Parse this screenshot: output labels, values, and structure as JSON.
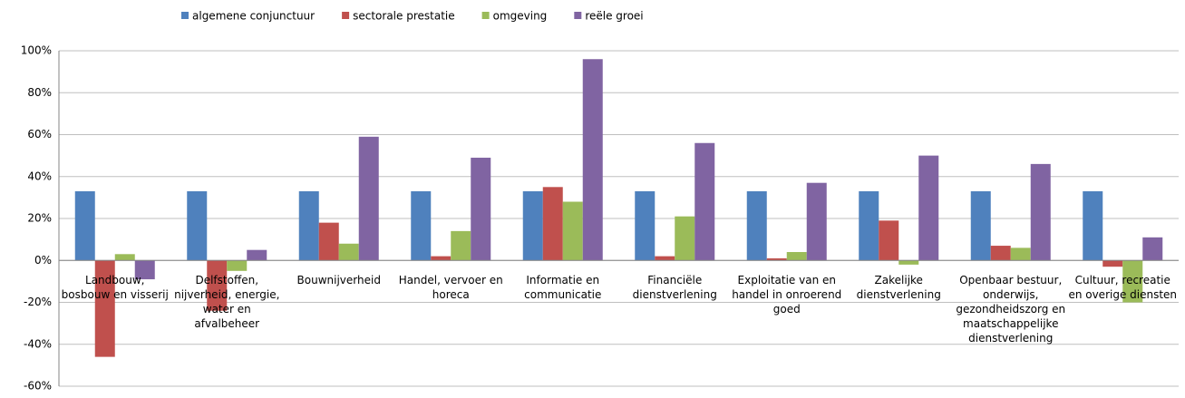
{
  "chart_data": {
    "type": "bar",
    "categories": [
      "Landbouw, bosbouw en visserij",
      "Delfstoffen, nijverheid, energie, water en afvalbeheer",
      "Bouwnijverheid",
      "Handel, vervoer en horeca",
      "Informatie en communicatie",
      "Financiële dienstverlening",
      "Exploitatie van en handel in onroerend goed",
      "Zakelijke dienstverlening",
      "Openbaar bestuur, onderwijs, gezondheidszorg en maatschappelijke dienstverlening",
      "Cultuur, recreatie en overige diensten"
    ],
    "series": [
      {
        "name": "algemene conjunctuur",
        "color": "#4f81bd",
        "values": [
          33,
          33,
          33,
          33,
          33,
          33,
          33,
          33,
          33,
          33
        ]
      },
      {
        "name": "sectorale prestatie",
        "color": "#c0504d",
        "values": [
          -46,
          -24,
          18,
          2,
          35,
          2,
          1,
          19,
          7,
          -3
        ]
      },
      {
        "name": "omgeving",
        "color": "#9bbb59",
        "values": [
          3,
          -5,
          8,
          14,
          28,
          21,
          4,
          -2,
          6,
          -20
        ]
      },
      {
        "name": "reële groei",
        "color": "#8064a2",
        "values": [
          -9,
          5,
          59,
          49,
          96,
          56,
          37,
          50,
          46,
          11
        ]
      }
    ],
    "ylim": [
      -60,
      100
    ],
    "yticks": [
      {
        "value": -60,
        "label": "-60%"
      },
      {
        "value": -40,
        "label": "-40%"
      },
      {
        "value": -20,
        "label": "-20%"
      },
      {
        "value": 0,
        "label": "0%"
      },
      {
        "value": 20,
        "label": "20%"
      },
      {
        "value": 40,
        "label": "40%"
      },
      {
        "value": 60,
        "label": "60%"
      },
      {
        "value": 80,
        "label": "80%"
      },
      {
        "value": 100,
        "label": "100%"
      }
    ],
    "grid": true,
    "legend": "top"
  }
}
